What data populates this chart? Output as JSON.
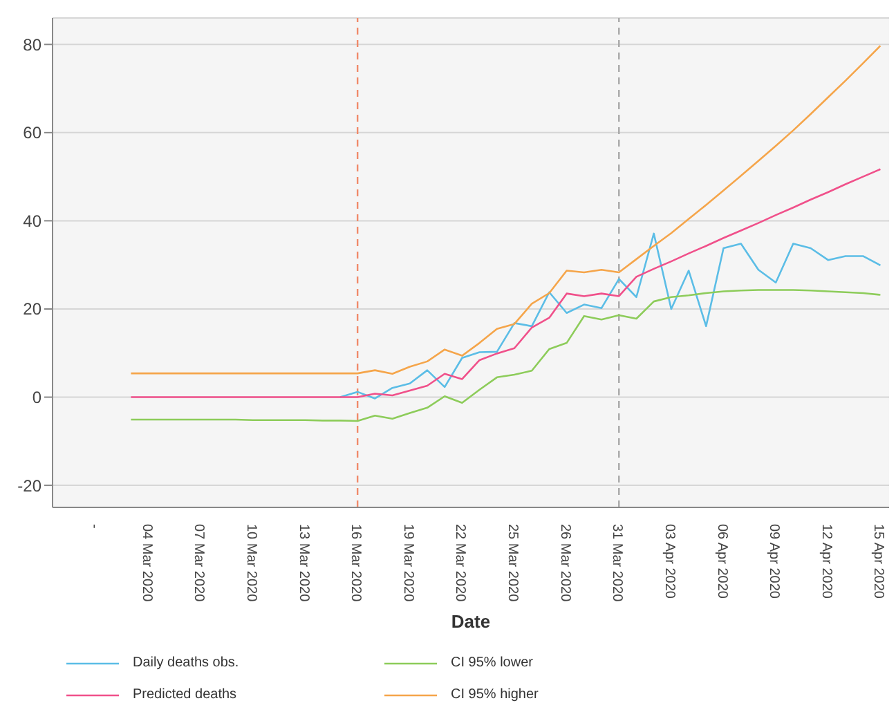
{
  "chart_data": {
    "type": "line",
    "xlabel": "Date",
    "categories": [
      "-",
      null,
      null,
      "04 Mar 2020",
      null,
      null,
      "07 Mar 2020",
      null,
      null,
      "10 Mar 2020",
      null,
      null,
      "13 Mar 2020",
      null,
      null,
      "16 Mar 2020",
      null,
      null,
      "19 Mar 2020",
      null,
      null,
      "22 Mar 2020",
      null,
      null,
      "25 Mar 2020",
      null,
      null,
      "26 Mar 2020",
      null,
      null,
      "31 Mar 2020",
      null,
      null,
      "03 Apr 2020",
      null,
      null,
      "06 Apr 2020",
      null,
      null,
      "09 Apr 2020",
      null,
      null,
      "12 Apr 2020",
      null,
      null,
      "15 Apr 2020"
    ],
    "series": [
      {
        "name": "Daily deaths obs.",
        "color": "#5bbde6",
        "values": [
          null,
          null,
          null,
          null,
          null,
          null,
          null,
          null,
          null,
          null,
          null,
          null,
          null,
          null,
          0,
          1.2,
          -0.3,
          2.1,
          3.1,
          6.1,
          2.3,
          8.9,
          10.2,
          10.3,
          16.8,
          16.1,
          23.8,
          19.1,
          21,
          20.2,
          26.8,
          22.7,
          37.1,
          20,
          28.7,
          16.1,
          33.8,
          34.8,
          28.9,
          26,
          34.8,
          33.8,
          31.1,
          32,
          32,
          29.9
        ]
      },
      {
        "name": "Predicted deaths",
        "color": "#f0508a",
        "values": [
          null,
          null,
          0,
          0,
          0,
          0,
          0,
          0,
          0,
          0,
          0,
          0,
          0,
          0,
          0,
          0,
          0.8,
          0.4,
          1.5,
          2.6,
          5.3,
          4.1,
          8.4,
          9.9,
          11.1,
          15.8,
          18,
          23.5,
          22.9,
          23.5,
          22.9,
          27.3,
          29.1,
          30.8,
          32.6,
          34.3,
          36.1,
          37.8,
          39.5,
          41.3,
          43,
          44.8,
          46.5,
          48.3,
          50,
          51.7
        ]
      },
      {
        "name": "CI 95% lower",
        "color": "#8dcc5a",
        "values": [
          null,
          null,
          -5.1,
          -5.1,
          -5.1,
          -5.1,
          -5.1,
          -5.1,
          -5.1,
          -5.2,
          -5.2,
          -5.2,
          -5.2,
          -5.3,
          -5.3,
          -5.4,
          -4.2,
          -4.9,
          -3.6,
          -2.4,
          0.2,
          -1.3,
          1.7,
          4.5,
          5.1,
          6,
          10.9,
          12.3,
          18.4,
          17.6,
          18.6,
          17.8,
          21.7,
          22.7,
          23.1,
          23.6,
          24,
          24.2,
          24.3,
          24.3,
          24.3,
          24.2,
          24,
          23.8,
          23.6,
          23.2
        ]
      },
      {
        "name": "CI 95% higher",
        "color": "#f5a54a",
        "values": [
          null,
          null,
          5.4,
          5.4,
          5.4,
          5.4,
          5.4,
          5.4,
          5.4,
          5.4,
          5.4,
          5.4,
          5.4,
          5.4,
          5.4,
          5.4,
          6.1,
          5.3,
          6.9,
          8.1,
          10.8,
          9.4,
          12.3,
          15.5,
          16.6,
          21.2,
          23.6,
          28.7,
          28.3,
          28.9,
          28.3,
          31.3,
          34.3,
          37.2,
          40.4,
          43.6,
          46.9,
          50.2,
          53.6,
          57,
          60.5,
          64.2,
          68,
          71.8,
          75.7,
          79.7
        ]
      }
    ],
    "ylim": [
      -25,
      86
    ],
    "yticks": [
      -20,
      0,
      20,
      40,
      60,
      80
    ],
    "grid": "y",
    "legend": "bottom",
    "marker": "none",
    "line_style": "solid",
    "ref_lines": [
      {
        "axis": "x",
        "value": "16 Mar 2020",
        "color": "#f08a6a",
        "line_style": "dashed"
      },
      {
        "axis": "x",
        "value": "31 Mar 2020",
        "color": "#a8a8a8",
        "line_style": "dashed"
      }
    ]
  }
}
